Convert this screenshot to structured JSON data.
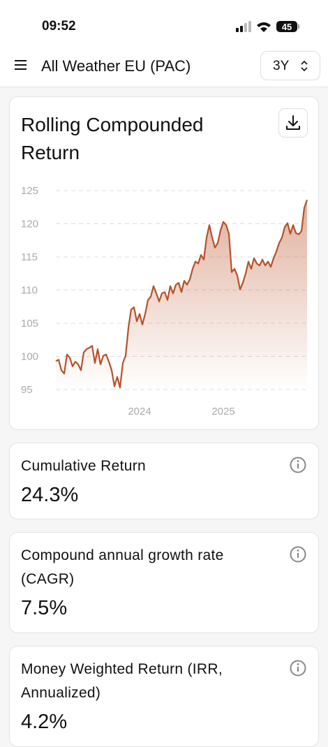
{
  "status": {
    "time": "09:52",
    "battery": "45"
  },
  "header": {
    "title": "All Weather EU (PAC)",
    "period": "3Y"
  },
  "chart_card": {
    "title": "Rolling Compounded Return"
  },
  "chart_data": {
    "type": "line",
    "color": "#b5522a",
    "grid": true,
    "xlim": [
      2023,
      2026
    ],
    "xticks": [
      2024,
      2025
    ],
    "ylim": [
      95,
      125
    ],
    "yticks": [
      95,
      100,
      105,
      110,
      115,
      120,
      125
    ],
    "x": [
      2023,
      2023.033,
      2023.067,
      2023.1,
      2023.133,
      2023.167,
      2023.2,
      2023.233,
      2023.267,
      2023.3,
      2023.333,
      2023.367,
      2023.4,
      2023.433,
      2023.467,
      2023.5,
      2023.533,
      2023.567,
      2023.6,
      2023.633,
      2023.667,
      2023.7,
      2023.733,
      2023.767,
      2023.8,
      2023.833,
      2023.867,
      2023.9,
      2023.933,
      2023.967,
      2024,
      2024.033,
      2024.067,
      2024.1,
      2024.133,
      2024.167,
      2024.2,
      2024.233,
      2024.267,
      2024.3,
      2024.333,
      2024.367,
      2024.4,
      2024.433,
      2024.467,
      2024.5,
      2024.533,
      2024.567,
      2024.6,
      2024.633,
      2024.667,
      2024.7,
      2024.733,
      2024.767,
      2024.8,
      2024.833,
      2024.867,
      2024.9,
      2024.933,
      2024.967,
      2025,
      2025.033,
      2025.067,
      2025.1,
      2025.133,
      2025.167,
      2025.2,
      2025.233,
      2025.267,
      2025.3,
      2025.333,
      2025.367,
      2025.4,
      2025.433,
      2025.467,
      2025.5,
      2025.533,
      2025.567,
      2025.6,
      2025.633,
      2025.667,
      2025.7,
      2025.733,
      2025.767,
      2025.8,
      2025.833,
      2025.867,
      2025.9,
      2025.933,
      2025.967,
      2026
    ],
    "values": [
      99.3,
      99.5,
      97.9,
      97.4,
      100.3,
      99.8,
      98.5,
      99.2,
      98.8,
      97.9,
      100.6,
      101.1,
      101.3,
      101.6,
      99.0,
      101.1,
      98.8,
      100.1,
      100.3,
      99.2,
      97.9,
      95.5,
      96.9,
      95.3,
      99.0,
      100.1,
      104.3,
      107.1,
      107.4,
      105.3,
      106.4,
      104.8,
      106.4,
      108.5,
      109.0,
      110.6,
      109.5,
      108.3,
      109.5,
      109.7,
      108.5,
      110.6,
      109.5,
      110.8,
      111.1,
      109.7,
      111.4,
      110.8,
      111.6,
      113.2,
      114.3,
      114.0,
      115.3,
      114.6,
      117.9,
      119.8,
      117.9,
      116.4,
      117.1,
      119.0,
      120.3,
      119.8,
      118.5,
      112.7,
      113.2,
      112.2,
      110.1,
      111.1,
      112.5,
      114.3,
      113.2,
      114.8,
      114.0,
      113.7,
      114.6,
      113.7,
      114.3,
      113.5,
      114.8,
      115.8,
      117.1,
      117.9,
      119.5,
      120.1,
      118.5,
      119.8,
      118.6,
      118.4,
      118.9,
      122.4,
      123.6
    ]
  },
  "metrics": [
    {
      "label": "Cumulative Return",
      "value": "24.3%"
    },
    {
      "label": "Compound annual growth rate (CAGR)",
      "value": "7.5%"
    },
    {
      "label": "Money Weighted Return (IRR, Annualized)",
      "value": "4.2%"
    }
  ]
}
